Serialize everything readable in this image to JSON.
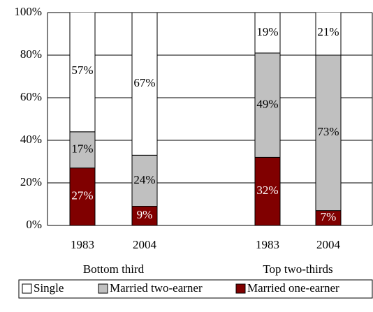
{
  "chart_data": {
    "type": "stacked_bar",
    "categories": [
      "1983",
      "2004",
      "1983",
      "2004"
    ],
    "groups": [
      "Bottom third",
      "Top two-thirds"
    ],
    "series": [
      {
        "name": "Married one-earner",
        "color": "#800000",
        "label_color": "#ffffff",
        "values": [
          27,
          9,
          32,
          7
        ],
        "value_labels": [
          "27%",
          "9%",
          "32%",
          "7%"
        ]
      },
      {
        "name": "Married two-earner",
        "color": "#c0c0c0",
        "label_color": "#000000",
        "values": [
          17,
          24,
          49,
          73
        ],
        "value_labels": [
          "17%",
          "24%",
          "49%",
          "73%"
        ]
      },
      {
        "name": "Single",
        "color": "#ffffff",
        "label_color": "#000000",
        "values": [
          57,
          67,
          19,
          21
        ],
        "value_labels": [
          "57%",
          "67%",
          "19%",
          "21%"
        ]
      }
    ],
    "ylim": [
      0,
      100
    ],
    "yticks": [
      {
        "value": 0,
        "label": "0%"
      },
      {
        "value": 20,
        "label": "20%"
      },
      {
        "value": 40,
        "label": "40%"
      },
      {
        "value": 60,
        "label": "60%"
      },
      {
        "value": 80,
        "label": "80%"
      },
      {
        "value": 100,
        "label": "100%"
      }
    ],
    "grid": true
  }
}
